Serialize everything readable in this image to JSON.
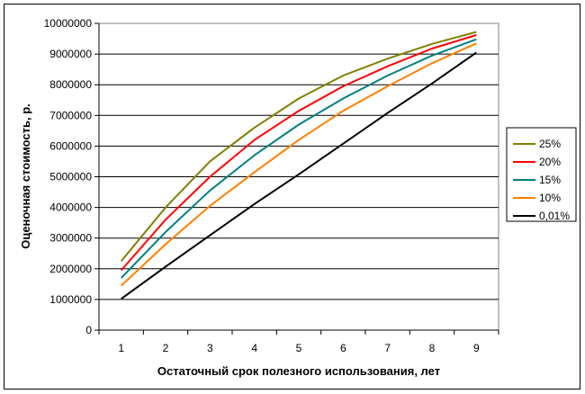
{
  "chart_data": {
    "type": "line",
    "title": "",
    "xlabel": "Остаточный срок полезного использования, лет",
    "ylabel": "Оценочная стоимость, р.",
    "x": [
      1,
      2,
      3,
      4,
      5,
      6,
      7,
      8,
      9
    ],
    "x_ticks": [
      "1",
      "2",
      "3",
      "4",
      "5",
      "6",
      "7",
      "8",
      "9"
    ],
    "ylim": [
      0,
      10000000
    ],
    "y_ticks": [
      0,
      1000000,
      2000000,
      3000000,
      4000000,
      5000000,
      6000000,
      7000000,
      8000000,
      9000000,
      10000000
    ],
    "y_tick_labels": [
      "0",
      "1000000",
      "2000000",
      "3000000",
      "4000000",
      "5000000",
      "6000000",
      "7000000",
      "8000000",
      "9000000",
      "10000000"
    ],
    "grid": "horizontal",
    "legend_position": "right",
    "series": [
      {
        "name": "25%",
        "color": "#808000",
        "values": [
          2250000,
          4000000,
          5500000,
          6600000,
          7550000,
          8300000,
          8850000,
          9330000,
          9720000
        ]
      },
      {
        "name": "20%",
        "color": "#ff0000",
        "values": [
          1950000,
          3600000,
          5000000,
          6200000,
          7150000,
          7950000,
          8600000,
          9180000,
          9620000
        ]
      },
      {
        "name": "15%",
        "color": "#008080",
        "values": [
          1700000,
          3200000,
          4550000,
          5700000,
          6700000,
          7550000,
          8300000,
          8950000,
          9480000
        ]
      },
      {
        "name": "10%",
        "color": "#ff8000",
        "values": [
          1450000,
          2800000,
          4050000,
          5150000,
          6200000,
          7150000,
          7950000,
          8700000,
          9350000
        ]
      },
      {
        "name": "0,01%",
        "color": "#000000",
        "values": [
          1020000,
          2070000,
          3090000,
          4110000,
          5080000,
          6080000,
          7080000,
          8040000,
          9050000
        ]
      }
    ]
  }
}
